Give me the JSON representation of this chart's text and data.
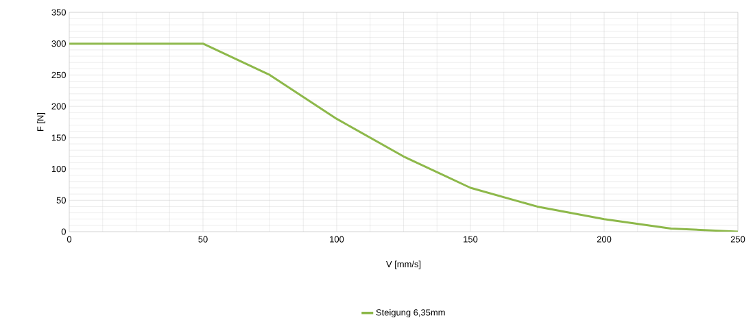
{
  "chart_data": {
    "type": "line",
    "xlabel": "V [mm/s]",
    "ylabel": "F [N]",
    "x": [
      0,
      50,
      75,
      100,
      125,
      150,
      175,
      200,
      225,
      250
    ],
    "series": [
      {
        "name": "Steigung 6,35mm",
        "color": "#8db84a",
        "values": [
          300,
          300,
          250,
          180,
          120,
          70,
          40,
          20,
          5,
          0
        ]
      }
    ],
    "xlim": [
      0,
      250
    ],
    "ylim": [
      0,
      350
    ],
    "xticks": [
      0,
      50,
      100,
      150,
      200,
      250
    ],
    "yticks": [
      0,
      50,
      100,
      150,
      200,
      250,
      300,
      350
    ],
    "grid": true,
    "legend": "bottom",
    "marker": "none",
    "line_style": "solid"
  }
}
